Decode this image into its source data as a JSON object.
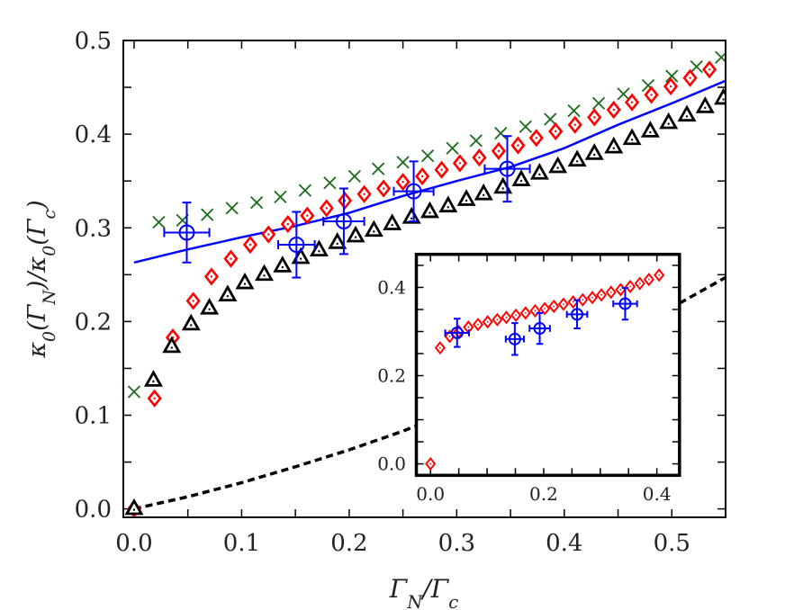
{
  "chart_data": [
    {
      "type": "scatter",
      "xlabel": "Γ_N/Γ_c",
      "ylabel": "κ_0(Γ_N)/κ_0(Γ_c)",
      "xlim": [
        -0.01,
        0.55
      ],
      "ylim": [
        -0.009,
        0.5
      ],
      "xticks": [
        "0.0",
        "0.1",
        "0.2",
        "0.3",
        "0.4",
        "0.5"
      ],
      "yticks": [
        "0.0",
        "0.1",
        "0.2",
        "0.3",
        "0.4",
        "0.5"
      ],
      "grid": false,
      "series": [
        {
          "marker": "x",
          "color": "#1a6b1a",
          "x": [
            0,
            0.023,
            0.045,
            0.068,
            0.091,
            0.114,
            0.136,
            0.159,
            0.182,
            0.205,
            0.227,
            0.25,
            0.273,
            0.296,
            0.318,
            0.341,
            0.364,
            0.387,
            0.409,
            0.432,
            0.455,
            0.478,
            0.5,
            0.523,
            0.546
          ],
          "y": [
            0.125,
            0.306,
            0.308,
            0.314,
            0.321,
            0.327,
            0.333,
            0.34,
            0.348,
            0.355,
            0.363,
            0.37,
            0.377,
            0.385,
            0.393,
            0.401,
            0.408,
            0.416,
            0.425,
            0.433,
            0.443,
            0.452,
            0.462,
            0.472,
            0.482
          ]
        },
        {
          "marker": "diamond",
          "color": "#ff0000",
          "x": [
            0,
            0.019,
            0.036,
            0.055,
            0.072,
            0.09,
            0.108,
            0.125,
            0.143,
            0.161,
            0.179,
            0.196,
            0.214,
            0.232,
            0.25,
            0.268,
            0.286,
            0.303,
            0.321,
            0.339,
            0.357,
            0.374,
            0.392,
            0.41,
            0.428,
            0.446,
            0.463,
            0.481,
            0.499,
            0.517,
            0.535
          ],
          "y": [
            0,
            0.118,
            0.183,
            0.222,
            0.248,
            0.267,
            0.282,
            0.293,
            0.304,
            0.313,
            0.321,
            0.329,
            0.336,
            0.342,
            0.349,
            0.355,
            0.362,
            0.369,
            0.375,
            0.382,
            0.388,
            0.396,
            0.403,
            0.41,
            0.418,
            0.426,
            0.434,
            0.442,
            0.451,
            0.46,
            0.469
          ]
        },
        {
          "marker": "triangle",
          "color": "#000000",
          "x": [
            0,
            0.018,
            0.035,
            0.053,
            0.07,
            0.087,
            0.103,
            0.121,
            0.138,
            0.155,
            0.172,
            0.189,
            0.206,
            0.223,
            0.24,
            0.258,
            0.275,
            0.292,
            0.309,
            0.325,
            0.343,
            0.36,
            0.377,
            0.394,
            0.412,
            0.428,
            0.446,
            0.463,
            0.48,
            0.497,
            0.514,
            0.531,
            0.548
          ],
          "y": [
            0,
            0.137,
            0.173,
            0.197,
            0.214,
            0.228,
            0.241,
            0.25,
            0.259,
            0.268,
            0.276,
            0.284,
            0.291,
            0.297,
            0.304,
            0.311,
            0.317,
            0.323,
            0.33,
            0.336,
            0.343,
            0.351,
            0.358,
            0.365,
            0.372,
            0.379,
            0.386,
            0.395,
            0.403,
            0.412,
            0.42,
            0.429,
            0.438
          ]
        },
        {
          "marker": "circle-errorbar",
          "color": "#0000ff",
          "x": [
            0.049,
            0.151,
            0.195,
            0.26,
            0.347
          ],
          "y": [
            0.295,
            0.282,
            0.307,
            0.339,
            0.363
          ],
          "xerr": [
            0.021,
            0.017,
            0.019,
            0.0185,
            0.021
          ],
          "yerr": [
            0.032,
            0.035,
            0.035,
            0.032,
            0.035
          ]
        },
        {
          "marker": "line",
          "color": "#0000ff",
          "style": "solid",
          "x": [
            0,
            0.05,
            0.1,
            0.15,
            0.2,
            0.25,
            0.3,
            0.35,
            0.4,
            0.45,
            0.5,
            0.55
          ],
          "y": [
            0.263,
            0.277,
            0.29,
            0.302,
            0.316,
            0.334,
            0.35,
            0.365,
            0.385,
            0.41,
            0.433,
            0.457
          ]
        },
        {
          "marker": "line",
          "color": "#000000",
          "style": "dashed",
          "x": [
            0,
            0.05,
            0.1,
            0.15,
            0.2,
            0.25,
            0.3,
            0.35,
            0.4,
            0.45,
            0.5,
            0.55
          ],
          "y": [
            0,
            0.013,
            0.028,
            0.045,
            0.063,
            0.083,
            0.106,
            0.131,
            0.157,
            0.185,
            0.215,
            0.247
          ]
        }
      ]
    },
    {
      "type": "scatter",
      "placement": "inset-lower-right",
      "xlim": [
        -0.025,
        0.44
      ],
      "ylim": [
        -0.026,
        0.475
      ],
      "xticks": [
        "0.0",
        "0.2",
        "0.4"
      ],
      "yticks": [
        "0.0",
        "0.2",
        "0.4"
      ],
      "grid": false,
      "series": [
        {
          "marker": "diamond",
          "color": "#ff0000",
          "x": [
            0,
            0.017,
            0.034,
            0.05,
            0.067,
            0.084,
            0.101,
            0.118,
            0.134,
            0.151,
            0.168,
            0.185,
            0.202,
            0.218,
            0.235,
            0.252,
            0.269,
            0.286,
            0.302,
            0.319,
            0.336,
            0.353,
            0.37,
            0.386,
            0.404
          ],
          "y": [
            0,
            0.263,
            0.289,
            0.3,
            0.31,
            0.316,
            0.322,
            0.327,
            0.332,
            0.337,
            0.342,
            0.347,
            0.352,
            0.357,
            0.362,
            0.367,
            0.372,
            0.377,
            0.383,
            0.389,
            0.395,
            0.402,
            0.409,
            0.418,
            0.428
          ]
        },
        {
          "marker": "circle-errorbar",
          "color": "#0000ff",
          "x": [
            0.047,
            0.149,
            0.193,
            0.259,
            0.344
          ],
          "y": [
            0.297,
            0.283,
            0.307,
            0.339,
            0.363
          ],
          "xerr": [
            0.021,
            0.016,
            0.018,
            0.018,
            0.021
          ],
          "yerr": [
            0.032,
            0.036,
            0.035,
            0.032,
            0.036
          ]
        }
      ]
    }
  ]
}
